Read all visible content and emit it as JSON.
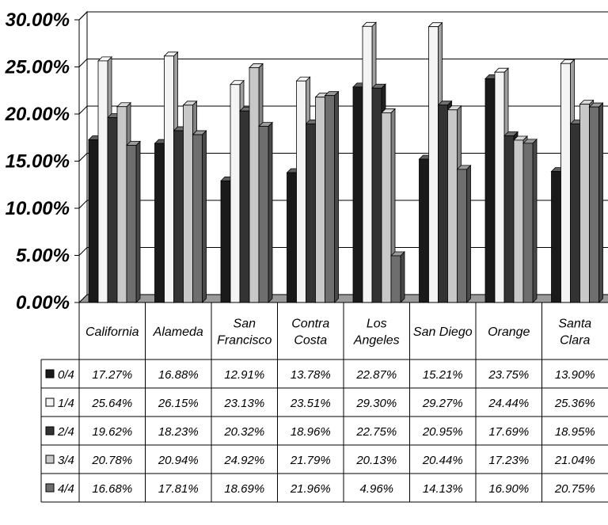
{
  "chart_data": {
    "type": "bar",
    "categories": [
      [
        "California"
      ],
      [
        "Alameda"
      ],
      [
        "San",
        "Francisco"
      ],
      [
        "Contra",
        "Costa"
      ],
      [
        "Los",
        "Angeles"
      ],
      [
        "San Diego"
      ],
      [
        "Orange"
      ],
      [
        "Santa",
        "Clara"
      ]
    ],
    "series": [
      {
        "name": "0/4",
        "values": [
          17.27,
          16.88,
          12.91,
          13.78,
          22.87,
          15.21,
          23.75,
          13.9
        ],
        "labels": [
          "17.27%",
          "16.88%",
          "12.91%",
          "13.78%",
          "22.87%",
          "15.21%",
          "23.75%",
          "13.90%"
        ],
        "color": "#1a1a1a"
      },
      {
        "name": "1/4",
        "values": [
          25.64,
          26.15,
          23.13,
          23.51,
          29.3,
          29.27,
          24.44,
          25.36
        ],
        "labels": [
          "25.64%",
          "26.15%",
          "23.13%",
          "23.51%",
          "29.30%",
          "29.27%",
          "24.44%",
          "25.36%"
        ],
        "color": "#f4f4f4"
      },
      {
        "name": "2/4",
        "values": [
          19.62,
          18.23,
          20.32,
          18.96,
          22.75,
          20.95,
          17.69,
          18.95
        ],
        "labels": [
          "19.62%",
          "18.23%",
          "20.32%",
          "18.96%",
          "22.75%",
          "20.95%",
          "17.69%",
          "18.95%"
        ],
        "color": "#333333"
      },
      {
        "name": "3/4",
        "values": [
          20.78,
          20.94,
          24.92,
          21.79,
          20.13,
          20.44,
          17.23,
          21.04
        ],
        "labels": [
          "20.78%",
          "20.94%",
          "24.92%",
          "21.79%",
          "20.13%",
          "20.44%",
          "17.23%",
          "21.04%"
        ],
        "color": "#c8c8c8"
      },
      {
        "name": "4/4",
        "values": [
          16.68,
          17.81,
          18.69,
          21.96,
          4.96,
          14.13,
          16.9,
          20.75
        ],
        "labels": [
          "16.68%",
          "17.81%",
          "18.69%",
          "21.96%",
          "4.96%",
          "14.13%",
          "16.90%",
          "20.75%"
        ],
        "color": "#6e6e6e"
      }
    ],
    "y_ticks": [
      "0.00%",
      "5.00%",
      "10.00%",
      "15.00%",
      "20.00%",
      "25.00%",
      "30.00%"
    ],
    "ylim": [
      0,
      30
    ],
    "grid": true,
    "data_table": true,
    "title": "",
    "xlabel": "",
    "ylabel": ""
  }
}
